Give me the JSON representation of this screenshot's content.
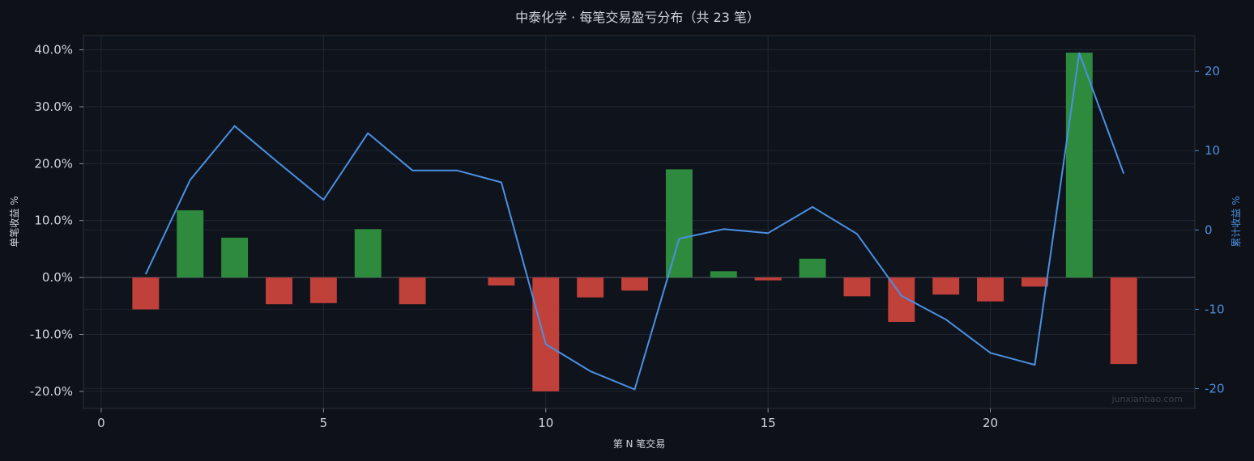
{
  "chart_data": {
    "type": "bar",
    "title": "中泰化学 · 每笔交易盈亏分布（共 23 笔）",
    "xlabel": "第 N 笔交易",
    "ylabel": "单笔收益 %",
    "y2label": "累计收益 %",
    "x_ticks": [
      0,
      5,
      10,
      15,
      20
    ],
    "y_ticks": [
      "40.0%",
      "30.0%",
      "20.0%",
      "10.0%",
      "0.0%",
      "-10.0%",
      "-20.0%"
    ],
    "y2_ticks": [
      "20",
      "10",
      "0",
      "-10",
      "-20"
    ],
    "xlim": [
      -0.4,
      24.6
    ],
    "ylim": [
      -23,
      42.5
    ],
    "y2lim": [
      -22.5,
      24.5
    ],
    "grid": true,
    "watermark": "junxianbao.com",
    "series": [
      {
        "kind": "bar",
        "x": [
          1,
          2,
          3,
          4,
          5,
          6,
          7,
          8,
          9,
          10,
          11,
          12,
          13,
          14,
          15,
          16,
          17,
          18,
          19,
          20,
          21,
          22,
          23
        ],
        "values": [
          -5.6,
          11.8,
          7.0,
          -4.7,
          -4.5,
          8.5,
          -4.7,
          0.0,
          -1.4,
          -20.0,
          -3.5,
          -2.3,
          19.0,
          1.1,
          -0.5,
          3.3,
          -3.3,
          -7.8,
          -3.0,
          -4.2,
          -1.6,
          39.5,
          -15.2
        ],
        "positive_color": "#2e8b3e",
        "negative_color": "#c0403a"
      },
      {
        "kind": "line",
        "axis": "right",
        "x": [
          1,
          2,
          3,
          4,
          5,
          6,
          7,
          8,
          9,
          10,
          11,
          12,
          13,
          14,
          15,
          16,
          17,
          18,
          19,
          20,
          21,
          22,
          23
        ],
        "values": [
          -5.6,
          6.3,
          13.1,
          8.4,
          3.8,
          12.2,
          7.5,
          7.5,
          6.0,
          -14.4,
          -17.8,
          -20.1,
          -1.1,
          0.1,
          -0.4,
          2.9,
          -0.5,
          -8.3,
          -11.3,
          -15.5,
          -17.0,
          22.3,
          7.1
        ],
        "color": "#4a90e2"
      }
    ]
  }
}
